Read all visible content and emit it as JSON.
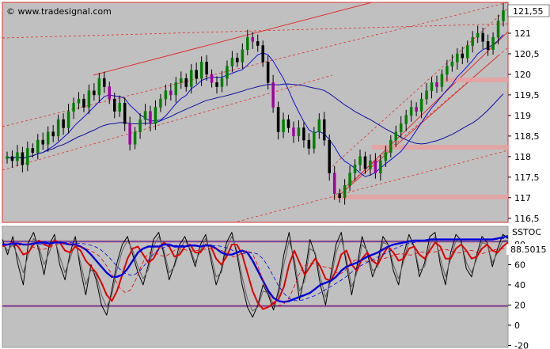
{
  "chart_data": [
    {
      "type": "candlestick",
      "watermark": "© www.tradesignal.com",
      "last_value": "121,55",
      "y_ticks": [
        "121",
        "120,5",
        "120",
        "119,5",
        "119",
        "118,5",
        "118",
        "117,5",
        "117",
        "116,5"
      ],
      "y_values": [
        121,
        120.5,
        120,
        119.5,
        119,
        118.5,
        118,
        117.5,
        117,
        116.5
      ],
      "ylim": [
        116.4,
        121.75
      ],
      "series": [
        {
          "name": "",
          "kind": "close",
          "values": [
            118.0,
            117.9,
            118.1,
            117.8,
            118.2,
            118.1,
            118.4,
            118.3,
            118.6,
            118.5,
            118.9,
            118.7,
            119.1,
            119.3,
            119.4,
            119.2,
            119.6,
            119.5,
            119.9,
            119.7,
            119.4,
            119.1,
            119.3,
            118.8,
            118.3,
            118.6,
            118.9,
            119.1,
            118.8,
            119.2,
            119.4,
            119.6,
            119.5,
            119.8,
            119.9,
            119.7,
            120.1,
            119.9,
            120.3,
            120.0,
            119.8,
            119.7,
            119.9,
            120.2,
            120.4,
            120.3,
            120.6,
            120.9,
            120.8,
            120.7,
            120.3,
            119.8,
            119.2,
            118.6,
            118.9,
            118.7,
            118.5,
            118.7,
            118.4,
            118.2,
            118.6,
            118.9,
            118.4,
            117.6,
            117.1,
            117.0,
            117.3,
            117.6,
            117.8,
            118.0,
            117.7,
            117.9,
            117.6,
            117.9,
            118.1,
            118.4,
            118.6,
            118.8,
            119.0,
            119.2,
            119.1,
            119.4,
            119.6,
            119.8,
            119.7,
            120.0,
            120.2,
            120.3,
            120.5,
            120.4,
            120.7,
            120.9,
            121.0,
            120.8,
            120.6,
            120.9,
            121.3,
            121.55
          ]
        }
      ]
    },
    {
      "type": "line",
      "indicator_label": "SSTOC",
      "last_value": "88.5015",
      "y_ticks": [
        "80",
        "60",
        "40",
        "20",
        "0",
        "-20"
      ],
      "y_values": [
        80,
        60,
        40,
        20,
        0,
        -20
      ],
      "ylim": [
        -22,
        98
      ],
      "reference_lines": [
        83,
        19
      ],
      "series": [
        {
          "name": "",
          "color": "#000000",
          "values": [
            85,
            70,
            88,
            60,
            40,
            82,
            92,
            74,
            50,
            80,
            90,
            60,
            45,
            72,
            88,
            55,
            30,
            60,
            45,
            20,
            10,
            35,
            62,
            80,
            88,
            70,
            52,
            40,
            60,
            85,
            92,
            70,
            45,
            60,
            80,
            88,
            74,
            58,
            80,
            90,
            65,
            40,
            55,
            82,
            92,
            70,
            40,
            18,
            8,
            20,
            40,
            30,
            15,
            35,
            70,
            92,
            60,
            25,
            50,
            85,
            70,
            40,
            20,
            50,
            80,
            92,
            60,
            30,
            58,
            88,
            72,
            48,
            62,
            88,
            80,
            54,
            40,
            70,
            90,
            78,
            48,
            62,
            88,
            92,
            60,
            40,
            72,
            90,
            84,
            56,
            48,
            70,
            88,
            82,
            58,
            76,
            90,
            86
          ]
        },
        {
          "name": "",
          "color": "#606060",
          "values": [
            82,
            74,
            80,
            68,
            52,
            70,
            86,
            78,
            60,
            72,
            86,
            68,
            52,
            66,
            82,
            62,
            40,
            55,
            50,
            30,
            18,
            30,
            55,
            74,
            84,
            74,
            58,
            46,
            55,
            78,
            88,
            74,
            52,
            58,
            74,
            84,
            76,
            62,
            74,
            86,
            70,
            48,
            52,
            76,
            88,
            74,
            48,
            26,
            14,
            18,
            34,
            32,
            20,
            30,
            60,
            84,
            66,
            34,
            44,
            76,
            72,
            48,
            28,
            44,
            72,
            86,
            66,
            38,
            52,
            80,
            74,
            54,
            58,
            82,
            80,
            60,
            46,
            64,
            84,
            78,
            54,
            58,
            80,
            88,
            66,
            48,
            66,
            84,
            82,
            62,
            52,
            66,
            82,
            80,
            62,
            72,
            84,
            84
          ]
        },
        {
          "name": "",
          "color": "#e00000",
          "values": [
            78,
            80,
            82,
            78,
            70,
            72,
            80,
            84,
            80,
            78,
            84,
            82,
            74,
            72,
            78,
            74,
            64,
            58,
            52,
            42,
            30,
            24,
            34,
            50,
            66,
            76,
            78,
            70,
            62,
            66,
            76,
            82,
            78,
            68,
            70,
            78,
            80,
            72,
            72,
            80,
            78,
            66,
            60,
            68,
            80,
            80,
            70,
            52,
            34,
            22,
            16,
            18,
            22,
            26,
            38,
            60,
            74,
            62,
            50,
            58,
            66,
            58,
            46,
            44,
            54,
            70,
            74,
            60,
            54,
            66,
            72,
            64,
            60,
            70,
            78,
            72,
            64,
            66,
            76,
            78,
            70,
            66,
            74,
            82,
            78,
            66,
            66,
            76,
            80,
            74,
            66,
            68,
            76,
            80,
            74,
            72,
            78,
            82
          ]
        },
        {
          "name": "",
          "color": "#0000dd",
          "values": [
            80,
            80,
            81,
            81,
            80,
            80,
            81,
            82,
            82,
            81,
            82,
            82,
            81,
            80,
            80,
            78,
            75,
            70,
            64,
            58,
            52,
            48,
            48,
            50,
            56,
            64,
            72,
            76,
            78,
            78,
            78,
            80,
            80,
            78,
            78,
            78,
            79,
            79,
            78,
            79,
            79,
            76,
            72,
            70,
            70,
            72,
            74,
            72,
            64,
            54,
            44,
            34,
            27,
            24,
            23,
            24,
            26,
            28,
            30,
            32,
            36,
            40,
            42,
            44,
            48,
            54,
            58,
            60,
            62,
            65,
            68,
            70,
            72,
            75,
            78,
            80,
            81,
            82,
            83,
            84,
            84,
            84,
            85,
            85,
            85,
            85,
            85,
            85,
            85,
            85,
            85,
            85,
            85,
            85,
            85,
            86,
            87,
            88.5
          ]
        }
      ]
    }
  ]
}
